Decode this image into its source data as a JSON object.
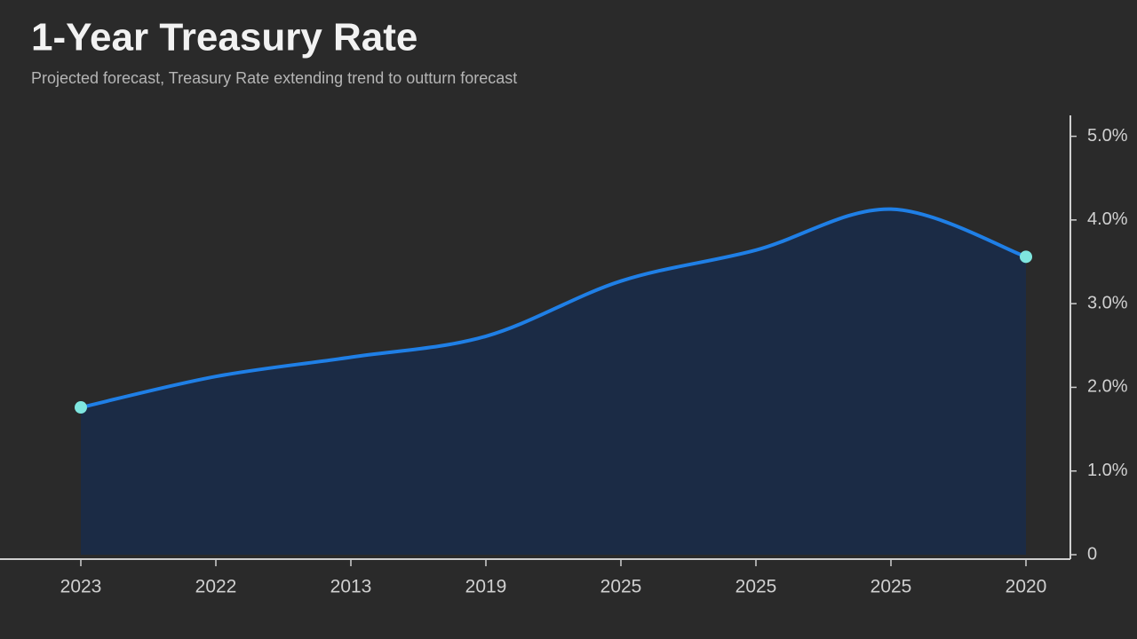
{
  "chart_data": {
    "type": "area",
    "title": "1-Year Treasury Rate",
    "subtitle": "Projected forecast, Treasury Rate extending trend to outturn forecast",
    "categories": [
      "2023",
      "2022",
      "2013",
      "2019",
      "2025",
      "2025",
      "2025",
      "2020"
    ],
    "series": [
      {
        "name": "1-Year Treasury Rate",
        "color": "#1f7fe6",
        "values": [
          1.76,
          2.13,
          2.36,
          2.61,
          3.27,
          3.64,
          4.13,
          3.56
        ]
      }
    ],
    "area_color": "#1b2b45",
    "marker_color": "#7fe6df",
    "ylim": [
      0,
      5.25
    ],
    "yticks": [
      0,
      {
        "value": 1,
        "label": "1.0%"
      },
      {
        "value": 2,
        "label": "2.0%"
      },
      {
        "value": 3,
        "label": "3.0%"
      },
      {
        "value": 4,
        "label": "4.0%"
      },
      {
        "value": 5,
        "label": "5.0%"
      }
    ],
    "grid": false
  }
}
